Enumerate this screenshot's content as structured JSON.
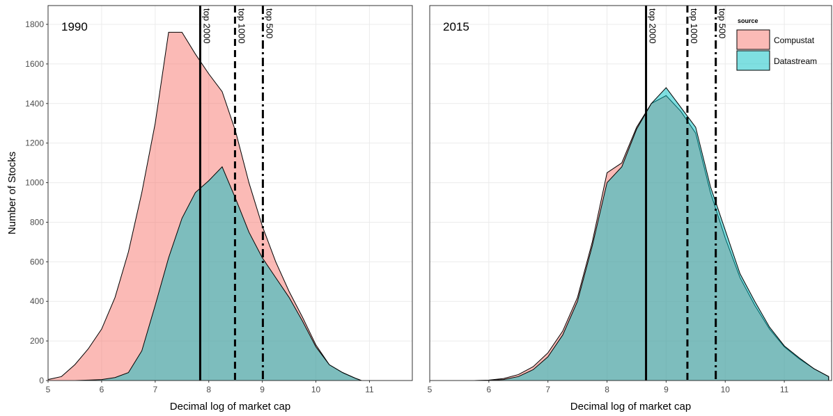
{
  "chart_data": [
    {
      "type": "area",
      "panel_label": "1990",
      "x_label": "Decimal log of market cap",
      "y_label": "Number of Stocks",
      "xlim": [
        5,
        11.8
      ],
      "xticks": [
        5,
        6,
        7,
        8,
        9,
        10,
        11
      ],
      "ylim": [
        0,
        1895
      ],
      "yticks": [
        0,
        200,
        400,
        600,
        800,
        1000,
        1200,
        1400,
        1600,
        1800
      ],
      "grid": true,
      "x": [
        5,
        5.25,
        5.5,
        5.75,
        6,
        6.25,
        6.5,
        6.75,
        7,
        7.25,
        7.5,
        7.75,
        8,
        8.25,
        8.5,
        8.75,
        9,
        9.25,
        9.5,
        9.75,
        10,
        10.25,
        10.5,
        10.75,
        10.85
      ],
      "series": [
        {
          "name": "Compustat",
          "color": "#F8766D",
          "values": [
            5,
            20,
            80,
            160,
            260,
            420,
            650,
            950,
            1300,
            1760,
            1760,
            1650,
            1550,
            1460,
            1260,
            1000,
            780,
            600,
            450,
            320,
            180,
            80,
            40,
            10,
            0
          ]
        },
        {
          "name": "Datastream",
          "color": "#00BFC4",
          "values": [
            0,
            0,
            0,
            2,
            5,
            15,
            40,
            150,
            380,
            620,
            820,
            950,
            1010,
            1080,
            920,
            750,
            620,
            520,
            420,
            300,
            170,
            80,
            40,
            10,
            0
          ]
        }
      ],
      "vlines": [
        {
          "label": "top 2000",
          "x": 7.84,
          "linetype": "solid"
        },
        {
          "label": "top 1000",
          "x": 8.49,
          "linetype": "dashed"
        },
        {
          "label": "top 500",
          "x": 9.01,
          "linetype": "dotdash"
        }
      ]
    },
    {
      "type": "area",
      "panel_label": "2015",
      "x_label": "Decimal log of market cap",
      "legend_title": "source",
      "legend": "top-right",
      "xlim": [
        5,
        11.8
      ],
      "xticks": [
        5,
        6,
        7,
        8,
        9,
        10,
        11
      ],
      "ylim": [
        0,
        1895
      ],
      "grid": true,
      "x": [
        5.75,
        6,
        6.25,
        6.5,
        6.75,
        7,
        7.25,
        7.5,
        7.75,
        8,
        8.25,
        8.5,
        8.75,
        9,
        9.25,
        9.5,
        9.75,
        10,
        10.25,
        10.5,
        10.75,
        11,
        11.25,
        11.5,
        11.75
      ],
      "series": [
        {
          "name": "Compustat",
          "color": "#F8766D",
          "values": [
            0,
            2,
            10,
            30,
            70,
            140,
            250,
            420,
            700,
            1050,
            1100,
            1280,
            1400,
            1440,
            1360,
            1250,
            950,
            720,
            520,
            380,
            260,
            170,
            110,
            60,
            20
          ]
        },
        {
          "name": "Datastream",
          "color": "#00BFC4",
          "values": [
            0,
            1,
            5,
            20,
            55,
            120,
            230,
            400,
            680,
            1000,
            1080,
            1270,
            1400,
            1480,
            1380,
            1280,
            980,
            760,
            540,
            400,
            270,
            175,
            115,
            60,
            20
          ]
        }
      ],
      "vlines": [
        {
          "label": "top 2000",
          "x": 8.66,
          "linetype": "solid"
        },
        {
          "label": "top 1000",
          "x": 9.36,
          "linetype": "dashed"
        },
        {
          "label": "top 500",
          "x": 9.84,
          "linetype": "dotdash"
        }
      ]
    }
  ]
}
